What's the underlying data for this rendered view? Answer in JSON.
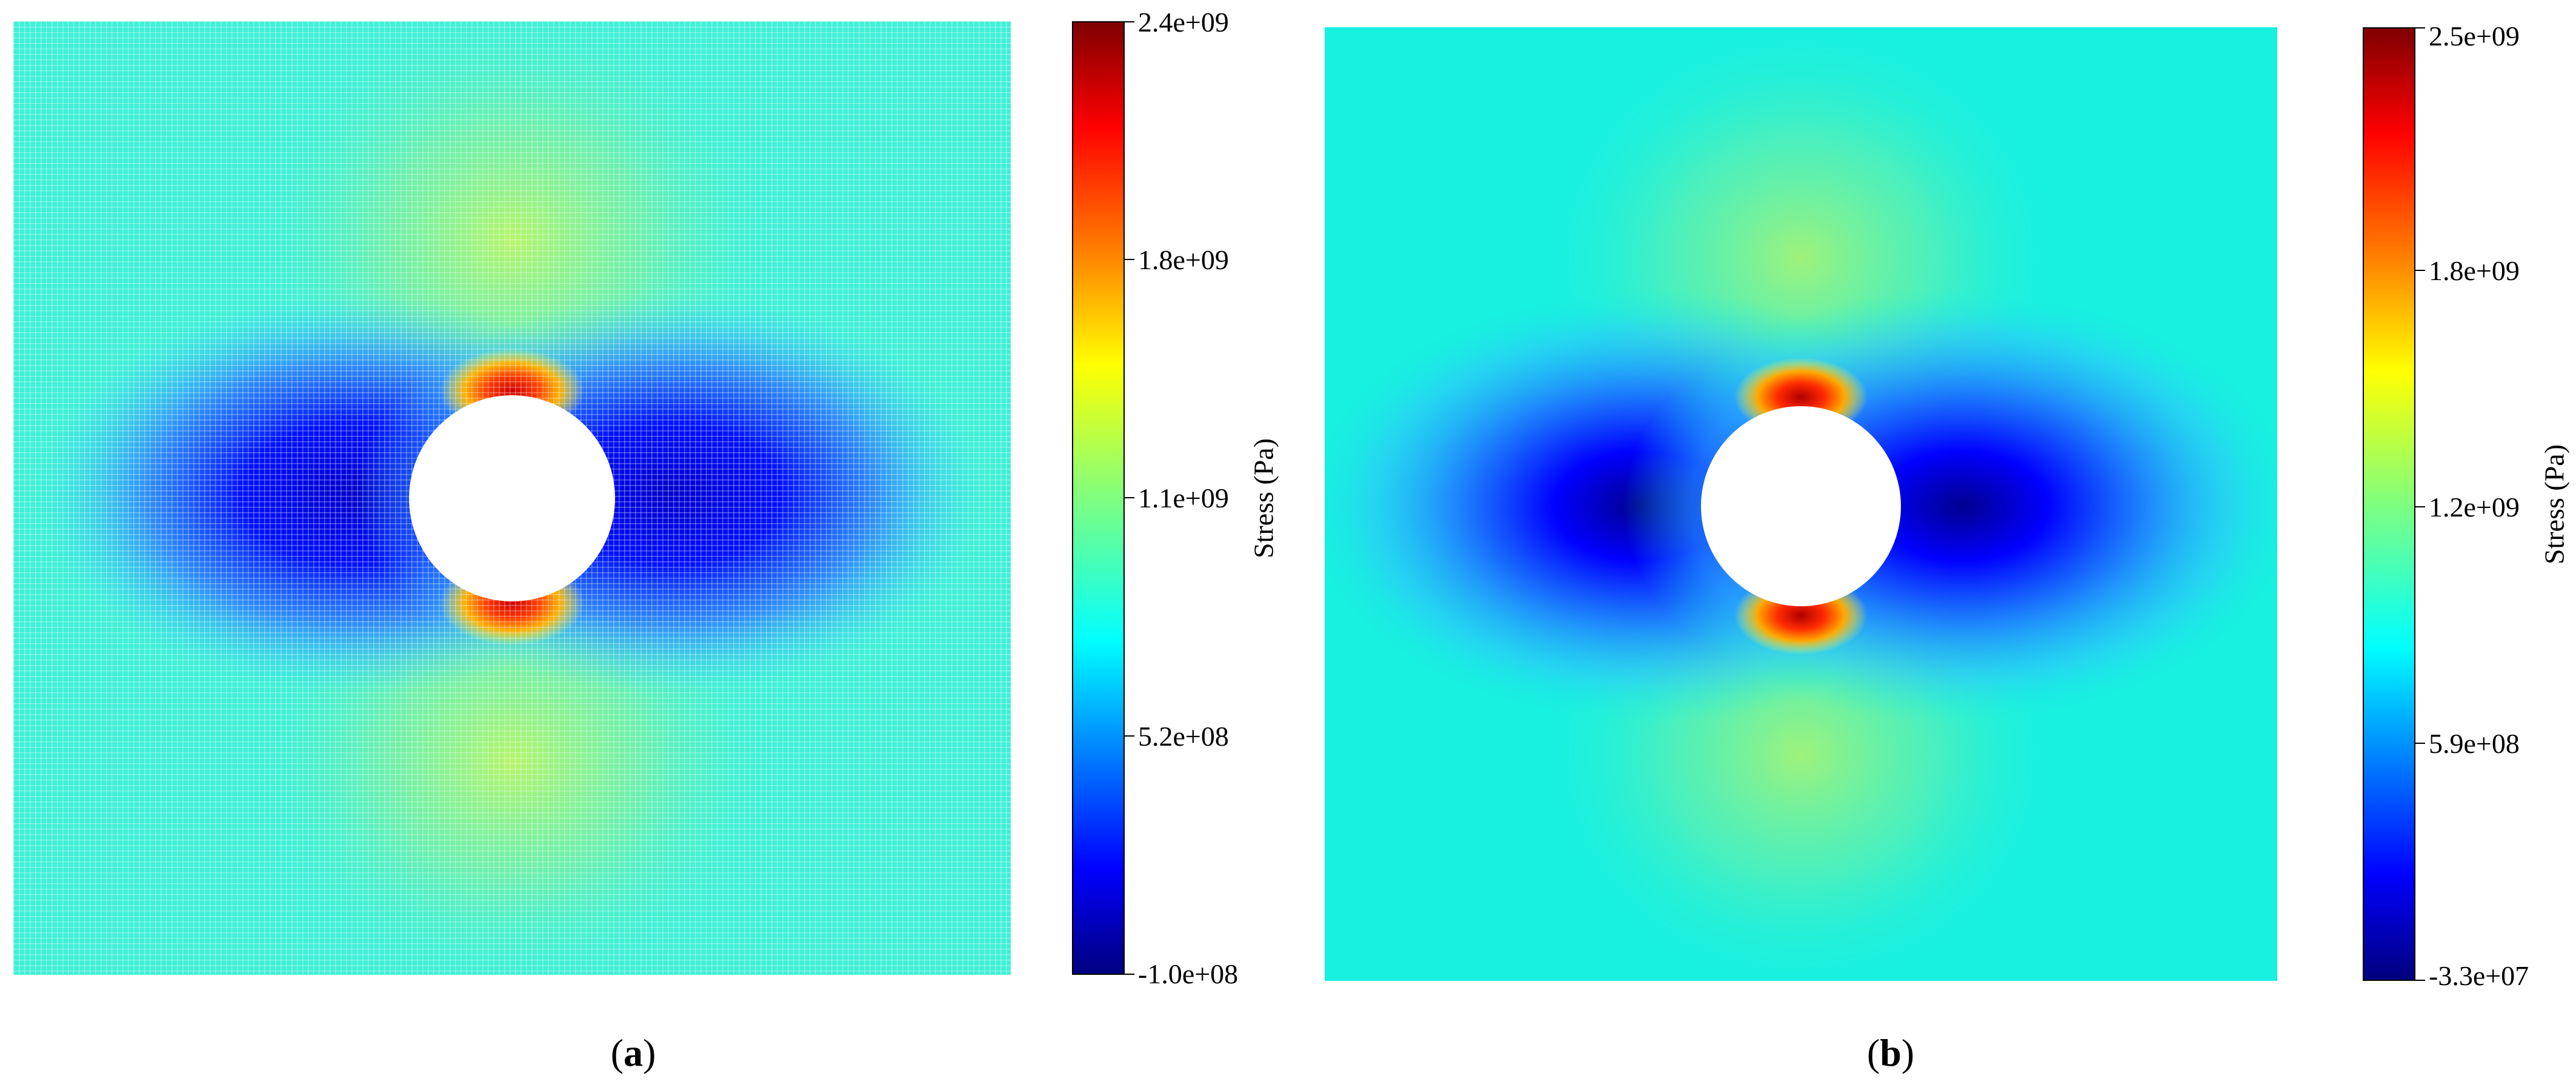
{
  "figure": {
    "panels": [
      {
        "id": "a",
        "caption_letter": "a",
        "colorbar_label": "Stress (Pa)",
        "colorbar_ticks": [
          "2.4e+09",
          "1.8e+09",
          "1.1e+09",
          "5.2e+08",
          "-1.0e+08"
        ]
      },
      {
        "id": "b",
        "caption_letter": "b",
        "colorbar_label": "Stress (Pa)",
        "colorbar_ticks": [
          "2.5e+09",
          "1.8e+09",
          "1.2e+09",
          "5.9e+08",
          "-3.3e+07"
        ]
      }
    ]
  },
  "chart_data": [
    {
      "type": "heatmap",
      "title": "",
      "colormap": "jet",
      "colorbar_label": "Stress (Pa)",
      "colorbar_range": [
        -100000000.0,
        2400000000.0
      ],
      "colorbar_ticks": [
        2400000000.0,
        1800000000.0,
        1100000000.0,
        520000000.0,
        -100000000.0
      ],
      "field_description_values": {
        "far_field_stress": 850000000.0,
        "hole_top_bottom_peak": 2400000000.0,
        "hole_left_right_min": -100000000.0
      },
      "hole": "circular, centered",
      "rendering": "discrete particle grid"
    },
    {
      "type": "heatmap",
      "title": "",
      "colormap": "jet",
      "colorbar_label": "Stress (Pa)",
      "colorbar_range": [
        -33000000.0,
        2500000000.0
      ],
      "colorbar_ticks": [
        2500000000.0,
        1800000000.0,
        1200000000.0,
        590000000.0,
        -33000000.0
      ],
      "field_description_values": {
        "far_field_stress": 900000000.0,
        "hole_top_bottom_peak": 2500000000.0,
        "hole_left_right_min": -33000000.0
      },
      "hole": "circular, centered",
      "rendering": "smooth contour"
    }
  ]
}
